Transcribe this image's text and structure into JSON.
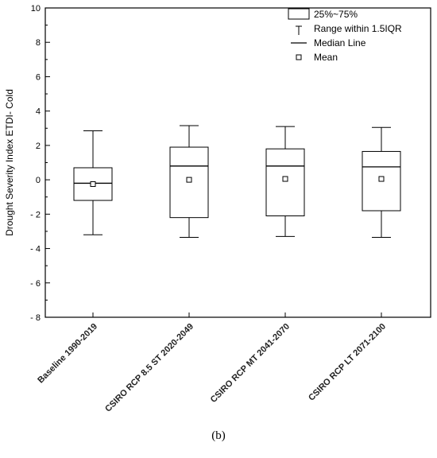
{
  "chart_data": {
    "type": "box",
    "ylabel": "Drought Severity Index ETDI- Cold",
    "ylim": [
      -8,
      10
    ],
    "yticks": [
      -8,
      -6,
      -4,
      -2,
      0,
      2,
      4,
      6,
      8,
      10
    ],
    "ytick_labels": [
      "- 8",
      "- 6",
      "- 4",
      "- 2",
      "0",
      "2",
      "4",
      "6",
      "8",
      "10"
    ],
    "categories": [
      "Baseline 1990-2019",
      "CSIRO RCP 8.5 ST 2020-2049",
      "CSIRO RCP MT 2041-2070",
      "CSIRO RCP LT 2071-2100"
    ],
    "boxes": [
      {
        "whisker_low": -3.2,
        "q1": -1.2,
        "median": -0.2,
        "q3": 0.7,
        "whisker_high": 2.85,
        "mean": -0.25
      },
      {
        "whisker_low": -3.35,
        "q1": -2.2,
        "median": 0.8,
        "q3": 1.9,
        "whisker_high": 3.15,
        "mean": 0.0
      },
      {
        "whisker_low": -3.3,
        "q1": -2.1,
        "median": 0.8,
        "q3": 1.8,
        "whisker_high": 3.1,
        "mean": 0.05
      },
      {
        "whisker_low": -3.35,
        "q1": -1.8,
        "median": 0.75,
        "q3": 1.65,
        "whisker_high": 3.05,
        "mean": 0.05
      }
    ],
    "legend": {
      "placement": "top-right",
      "entries": [
        "25%~75%",
        "Range within 1.5IQR",
        "Median Line",
        "Mean"
      ]
    },
    "grid": false
  },
  "panel_label": "(b)"
}
